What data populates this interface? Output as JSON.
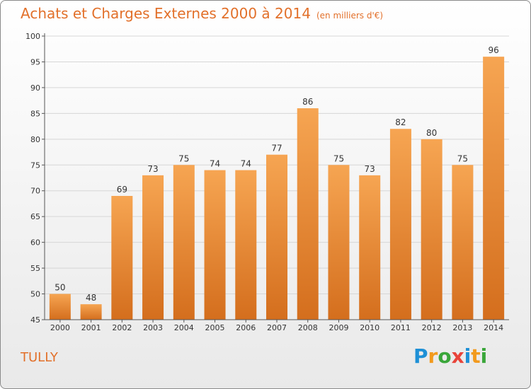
{
  "header": {
    "title": "Achats et Charges Externes 2000 à 2014",
    "unit": "(en milliers d'€)"
  },
  "commune": "TULLY",
  "logo": {
    "letters": [
      "P",
      "r",
      "o",
      "x",
      "i",
      "t",
      "i"
    ],
    "colors": [
      "#1e90d6",
      "#f29a1d",
      "#3aa63a",
      "#e8443a",
      "#1e90d6",
      "#f29a1d",
      "#3aa63a"
    ]
  },
  "colors": {
    "accent": "#e2702a",
    "bar_top": "#f6a552",
    "bar_bottom": "#d46e1d"
  },
  "chart_data": {
    "type": "bar",
    "title": "Achats et Charges Externes 2000 à 2014",
    "subtitle": "(en milliers d'€)",
    "categories": [
      "2000",
      "2001",
      "2002",
      "2003",
      "2004",
      "2005",
      "2006",
      "2007",
      "2008",
      "2009",
      "2010",
      "2011",
      "2012",
      "2013",
      "2014"
    ],
    "values": [
      50,
      48,
      69,
      73,
      75,
      74,
      74,
      77,
      86,
      75,
      73,
      82,
      80,
      75,
      96
    ],
    "ylim": [
      45,
      100
    ],
    "yticks": [
      45,
      50,
      55,
      60,
      65,
      70,
      75,
      80,
      85,
      90,
      95,
      100
    ],
    "grid": true,
    "xlabel": "",
    "ylabel": ""
  }
}
